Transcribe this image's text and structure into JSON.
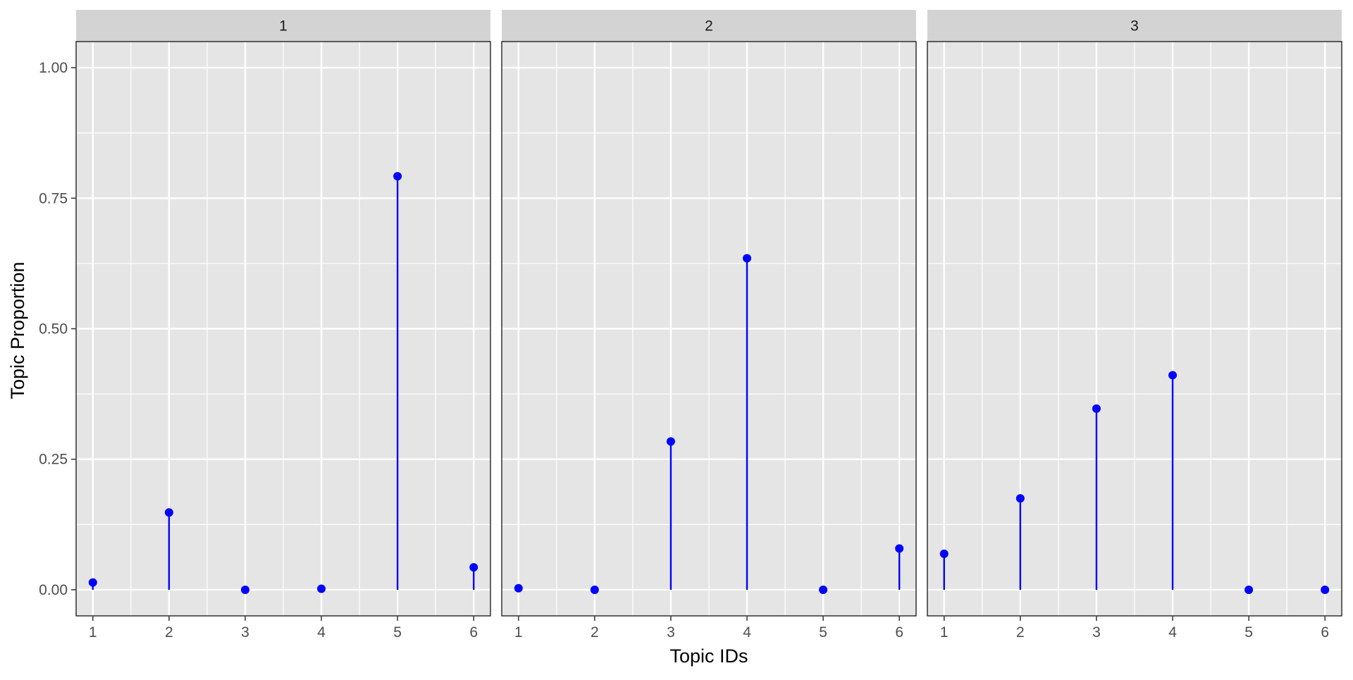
{
  "chart_data": {
    "type": "lollipop",
    "facet_by": "document",
    "xlabel": "Topic IDs",
    "ylabel": "Topic Proportion",
    "x_ticks": [
      1,
      2,
      3,
      4,
      5,
      6
    ],
    "y_ticks": [
      0,
      0.25,
      0.5,
      0.75,
      1.0
    ],
    "y_tick_labels": [
      "0.00",
      "0.25",
      "0.50",
      "0.75",
      "1.00"
    ],
    "xlim": [
      0.78,
      6.22
    ],
    "ylim": [
      -0.05,
      1.05
    ],
    "grid": true,
    "legend": "none",
    "colors": {
      "mark": "#0000ff",
      "panel_bg": "#e5e5e5",
      "strip_bg": "#d3d3d3",
      "grid_line": "#ffffff",
      "panel_border": "#000000"
    },
    "facets": [
      {
        "label": "1",
        "x": [
          1,
          2,
          3,
          4,
          5,
          6
        ],
        "values": [
          0.014,
          0.148,
          0.0,
          0.002,
          0.792,
          0.043
        ]
      },
      {
        "label": "2",
        "x": [
          1,
          2,
          3,
          4,
          5,
          6
        ],
        "values": [
          0.003,
          0.0,
          0.284,
          0.635,
          0.0,
          0.079
        ]
      },
      {
        "label": "3",
        "x": [
          1,
          2,
          3,
          4,
          5,
          6
        ],
        "values": [
          0.069,
          0.175,
          0.347,
          0.411,
          0.0,
          0.0
        ]
      }
    ]
  }
}
